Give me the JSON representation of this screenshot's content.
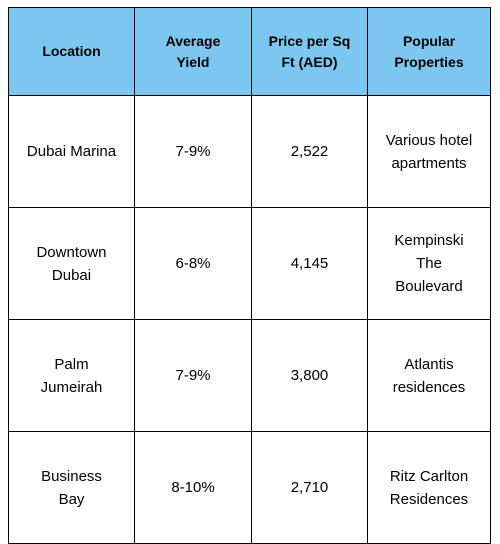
{
  "table": {
    "headers": [
      "Location",
      "Average\nYield",
      "Price per Sq\nFt (AED)",
      "Popular\nProperties"
    ],
    "rows": [
      [
        "Dubai Marina",
        "7-9%",
        "2,522",
        "Various hotel\napartments"
      ],
      [
        "Downtown\nDubai",
        "6-8%",
        "4,145",
        "Kempinski\nThe\nBoulevard"
      ],
      [
        "Palm\nJumeirah",
        "7-9%",
        "3,800",
        "Atlantis\nresidences"
      ],
      [
        "Business\nBay",
        "8-10%",
        "2,710",
        "Ritz Carlton\nResidences"
      ]
    ]
  },
  "colors": {
    "header_bg": "#7cc7ef",
    "border": "#000000",
    "text": "#000000"
  }
}
